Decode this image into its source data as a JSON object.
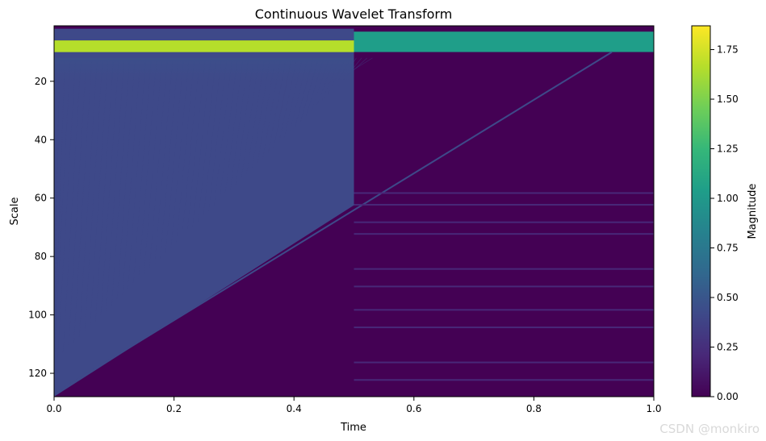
{
  "chart_data": {
    "type": "heatmap",
    "title": "Continuous Wavelet Transform",
    "xlabel": "Time",
    "ylabel": "Scale",
    "xlim": [
      0.0,
      1.0
    ],
    "ylim": [
      128,
      1
    ],
    "y_inverted": true,
    "grid": false,
    "colormap": "viridis",
    "x_ticks": [
      0.0,
      0.2,
      0.4,
      0.6,
      0.8,
      1.0
    ],
    "x_tick_labels": [
      "0.0",
      "0.2",
      "0.4",
      "0.6",
      "0.8",
      "1.0"
    ],
    "y_ticks": [
      20,
      40,
      60,
      80,
      100,
      120
    ],
    "y_tick_labels": [
      "20",
      "40",
      "60",
      "80",
      "100",
      "120"
    ],
    "colorbar": {
      "label": "Magnitude",
      "range": [
        0.0,
        1.87
      ],
      "ticks": [
        0.0,
        0.25,
        0.5,
        0.75,
        1.0,
        1.25,
        1.5,
        1.75
      ],
      "tick_labels": [
        "0.00",
        "0.25",
        "0.50",
        "0.75",
        "1.00",
        "1.25",
        "1.50",
        "1.75"
      ],
      "colors": [
        "#440154",
        "#482878",
        "#3e4989",
        "#31688e",
        "#26828e",
        "#1f9e89",
        "#35b779",
        "#6ece58",
        "#b5de2b",
        "#fde725"
      ]
    },
    "features": [
      {
        "scale_range": [
          2,
          6
        ],
        "time_range": [
          0.0,
          0.5
        ],
        "magnitude": 0.5
      },
      {
        "scale_range": [
          6,
          12
        ],
        "time_range": [
          0.0,
          0.5
        ],
        "magnitude": 1.7
      },
      {
        "scale_range": [
          3,
          10
        ],
        "time_range": [
          0.5,
          1.0
        ],
        "magnitude": 1.0
      },
      {
        "scale_range": [
          10,
          128
        ],
        "time_range": [
          0.0,
          0.5
        ],
        "magnitude": 0.35
      },
      {
        "scale_range": [
          10,
          128
        ],
        "time_range": [
          0.5,
          1.0
        ],
        "magnitude": 0.05
      }
    ]
  },
  "watermark": "CSDN @monkiro"
}
